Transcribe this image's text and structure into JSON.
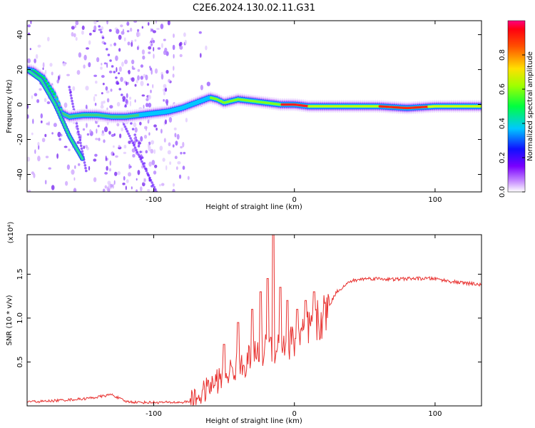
{
  "title": "C2E6.2024.130.02.11.G31",
  "chart_data": [
    {
      "type": "heatmap",
      "xlabel": "Height of straight line (km)",
      "ylabel": "Frequency (Hz)",
      "xlim": [
        -190,
        133
      ],
      "ylim": [
        -50,
        48
      ],
      "x_ticks": [
        -100,
        0,
        100
      ],
      "y_ticks": [
        -40,
        -20,
        0,
        20,
        40
      ],
      "colorbar": {
        "label": "Normalized spectral amplitude",
        "ticks": [
          0.0,
          0.2,
          0.4,
          0.6,
          0.8
        ],
        "range": [
          0,
          1
        ]
      },
      "ridge": {
        "name": "",
        "points": [
          [
            -190,
            20
          ],
          [
            -185,
            19
          ],
          [
            -178,
            15
          ],
          [
            -170,
            5
          ],
          [
            -165,
            -5
          ],
          [
            -160,
            -7
          ],
          [
            -150,
            -6
          ],
          [
            -140,
            -6
          ],
          [
            -130,
            -7
          ],
          [
            -120,
            -7
          ],
          [
            -110,
            -6
          ],
          [
            -100,
            -5
          ],
          [
            -90,
            -4
          ],
          [
            -80,
            -2
          ],
          [
            -70,
            1
          ],
          [
            -60,
            4
          ],
          [
            -55,
            3
          ],
          [
            -50,
            1
          ],
          [
            -45,
            2
          ],
          [
            -40,
            3
          ],
          [
            -30,
            2
          ],
          [
            -20,
            1
          ],
          [
            -10,
            0
          ],
          [
            0,
            0
          ],
          [
            10,
            -1
          ],
          [
            20,
            -1
          ],
          [
            40,
            -1
          ],
          [
            60,
            -1
          ],
          [
            80,
            -2
          ],
          [
            100,
            -1
          ],
          [
            133,
            -1
          ]
        ]
      },
      "diagonal_band": {
        "points": [
          [
            -190,
            20
          ],
          [
            -180,
            14
          ],
          [
            -170,
            0
          ],
          [
            -160,
            -18
          ],
          [
            -150,
            -32
          ]
        ]
      }
    },
    {
      "type": "line",
      "xlabel": "Height of straight line (km)",
      "ylabel": "SNR (10 * v/v)",
      "y_multiplier": "(x10⁴)",
      "xlim": [
        -190,
        133
      ],
      "ylim": [
        0,
        1.95
      ],
      "x_ticks": [
        -100,
        0,
        100
      ],
      "y_ticks": [
        0.5,
        1.0,
        1.5
      ],
      "series": [
        {
          "name": "",
          "color": "#e8312f",
          "x": [
            -190,
            -180,
            -170,
            -160,
            -150,
            -140,
            -130,
            -125,
            -120,
            -110,
            -100,
            -90,
            -80,
            -75,
            -70,
            -60,
            -50,
            -40,
            -30,
            -20,
            -10,
            0,
            10,
            20,
            25,
            30,
            40,
            50,
            60,
            70,
            80,
            90,
            100,
            110,
            120,
            133
          ],
          "values": [
            0.05,
            0.05,
            0.06,
            0.07,
            0.08,
            0.1,
            0.13,
            0.09,
            0.05,
            0.04,
            0.04,
            0.04,
            0.04,
            0.05,
            0.08,
            0.22,
            0.35,
            0.45,
            0.55,
            0.65,
            0.7,
            0.75,
            0.85,
            1.0,
            1.15,
            1.3,
            1.42,
            1.45,
            1.45,
            1.44,
            1.45,
            1.45,
            1.45,
            1.42,
            1.4,
            1.38
          ]
        }
      ],
      "spikes": [
        {
          "x": -15,
          "value": 1.95
        },
        {
          "x": -19,
          "value": 1.45
        },
        {
          "x": -24,
          "value": 1.3
        },
        {
          "x": -30,
          "value": 1.1
        },
        {
          "x": -40,
          "value": 0.95
        },
        {
          "x": -50,
          "value": 0.7
        },
        {
          "x": -10,
          "value": 1.35
        },
        {
          "x": -5,
          "value": 1.2
        },
        {
          "x": 2,
          "value": 1.1
        },
        {
          "x": 8,
          "value": 1.2
        },
        {
          "x": 14,
          "value": 1.3
        }
      ]
    }
  ]
}
